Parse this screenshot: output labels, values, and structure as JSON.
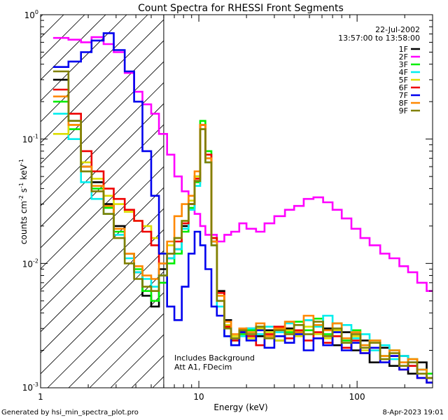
{
  "chart_data": {
    "type": "line",
    "title": "Count Spectra for RHESSI Front Segments",
    "xlabel": "Energy (keV)",
    "ylabel_parts": [
      "counts cm",
      "-2",
      " s",
      "-1",
      " keV",
      "-1"
    ],
    "x_scale": "log",
    "y_scale": "log",
    "xlim": [
      1.0,
      300.0
    ],
    "ylim": [
      0.001,
      1.0
    ],
    "x_ticks": [
      {
        "value": 1,
        "label": "1"
      },
      {
        "value": 10,
        "label": "10"
      },
      {
        "value": 100,
        "label": "100"
      }
    ],
    "y_ticks": [
      {
        "value": 0.001,
        "base": "10",
        "exp": "-3"
      },
      {
        "value": 0.01,
        "base": "10",
        "exp": "-2"
      },
      {
        "value": 0.1,
        "base": "10",
        "exp": "-1"
      },
      {
        "value": 1,
        "base": "10",
        "exp": "0"
      }
    ],
    "hatch_region_keV": [
      1.0,
      6.0
    ],
    "date": "22-Jul-2002",
    "time_range": "13:57:00 to 13:58:00",
    "annotations": [
      "Includes Background",
      "Att A1, FDecim"
    ],
    "series": [
      {
        "name": "1F",
        "color": "#000000",
        "x": [
          1.2,
          1.5,
          1.8,
          2.1,
          2.5,
          2.9,
          3.4,
          3.9,
          4.4,
          5.0,
          5.6,
          6.3,
          7.0,
          7.8,
          8.6,
          9.4,
          10.2,
          11.0,
          12.0,
          13.0,
          14.5,
          16,
          18,
          20,
          23,
          26,
          30,
          35,
          40,
          46,
          53,
          61,
          70,
          80,
          92,
          105,
          120,
          140,
          160,
          185,
          210,
          240,
          275
        ],
        "y": [
          0.3,
          0.14,
          0.06,
          0.045,
          0.03,
          0.02,
          0.012,
          0.0085,
          0.0055,
          0.0045,
          0.009,
          0.011,
          0.013,
          0.02,
          0.03,
          0.05,
          0.13,
          0.07,
          0.015,
          0.006,
          0.0035,
          0.0025,
          0.0028,
          0.003,
          0.0026,
          0.0029,
          0.0024,
          0.003,
          0.0028,
          0.0035,
          0.0025,
          0.003,
          0.0022,
          0.0028,
          0.002,
          0.0024,
          0.0016,
          0.0021,
          0.0015,
          0.0018,
          0.0013,
          0.0016,
          0.0012
        ]
      },
      {
        "name": "2F",
        "color": "#ff00ff",
        "x": [
          1.2,
          1.5,
          1.8,
          2.1,
          2.5,
          2.9,
          3.4,
          3.9,
          4.4,
          5.0,
          5.6,
          6.3,
          7.0,
          7.8,
          8.6,
          9.4,
          10.2,
          11.0,
          12.0,
          13.0,
          14.5,
          16,
          18,
          20,
          23,
          26,
          30,
          35,
          40,
          46,
          53,
          61,
          70,
          80,
          92,
          105,
          120,
          140,
          160,
          185,
          210,
          240,
          275
        ],
        "y": [
          0.65,
          0.63,
          0.6,
          0.66,
          0.58,
          0.5,
          0.34,
          0.24,
          0.19,
          0.16,
          0.11,
          0.075,
          0.05,
          0.038,
          0.03,
          0.025,
          0.02,
          0.017,
          0.017,
          0.015,
          0.017,
          0.018,
          0.021,
          0.019,
          0.018,
          0.021,
          0.024,
          0.027,
          0.029,
          0.033,
          0.034,
          0.031,
          0.027,
          0.023,
          0.019,
          0.016,
          0.014,
          0.012,
          0.011,
          0.0095,
          0.0085,
          0.007,
          0.006
        ]
      },
      {
        "name": "3F",
        "color": "#00ee00",
        "x": [
          1.2,
          1.5,
          1.8,
          2.1,
          2.5,
          2.9,
          3.4,
          3.9,
          4.4,
          5.0,
          5.6,
          6.3,
          7.0,
          7.8,
          8.6,
          9.4,
          10.2,
          11.0,
          12.0,
          13.0,
          14.5,
          16,
          18,
          20,
          23,
          26,
          30,
          35,
          40,
          46,
          53,
          61,
          70,
          80,
          92,
          105,
          120,
          140,
          160,
          185,
          210,
          240,
          275
        ],
        "y": [
          0.2,
          0.12,
          0.055,
          0.04,
          0.028,
          0.018,
          0.012,
          0.009,
          0.006,
          0.005,
          0.007,
          0.01,
          0.012,
          0.018,
          0.028,
          0.045,
          0.14,
          0.08,
          0.016,
          0.005,
          0.003,
          0.0024,
          0.0027,
          0.0029,
          0.0031,
          0.0026,
          0.003,
          0.0028,
          0.0034,
          0.0029,
          0.0036,
          0.0027,
          0.0033,
          0.0024,
          0.0029,
          0.0022,
          0.0024,
          0.0018,
          0.002,
          0.0016,
          0.0017,
          0.0014,
          0.0013
        ]
      },
      {
        "name": "4F",
        "color": "#00eeee",
        "x": [
          1.2,
          1.5,
          1.8,
          2.1,
          2.5,
          2.9,
          3.4,
          3.9,
          4.4,
          5.0,
          5.6,
          6.3,
          7.0,
          7.8,
          8.6,
          9.4,
          10.2,
          11.0,
          12.0,
          13.0,
          14.5,
          16,
          18,
          20,
          23,
          26,
          30,
          35,
          40,
          46,
          53,
          61,
          70,
          80,
          92,
          105,
          120,
          140,
          160,
          185,
          210,
          240,
          275
        ],
        "y": [
          0.16,
          0.1,
          0.045,
          0.033,
          0.025,
          0.017,
          0.011,
          0.0085,
          0.0075,
          0.0065,
          0.008,
          0.011,
          0.013,
          0.019,
          0.027,
          0.042,
          0.12,
          0.065,
          0.014,
          0.0045,
          0.0026,
          0.0022,
          0.0026,
          0.003,
          0.0027,
          0.0031,
          0.0028,
          0.0033,
          0.0029,
          0.0035,
          0.0031,
          0.0038,
          0.0028,
          0.0032,
          0.0025,
          0.0027,
          0.002,
          0.0022,
          0.0017,
          0.0018,
          0.0015,
          0.0014,
          0.0012
        ]
      },
      {
        "name": "5F",
        "color": "#dddd00",
        "x": [
          1.2,
          1.5,
          1.8,
          2.1,
          2.5,
          2.9,
          3.4,
          3.9,
          4.4,
          5.0,
          5.6,
          6.3,
          7.0,
          7.8,
          8.6,
          9.4,
          10.2,
          11.0,
          12.0,
          13.0,
          14.5,
          16,
          18,
          20,
          23,
          26,
          30,
          35,
          40,
          46,
          53,
          61,
          70,
          80,
          92,
          105,
          120,
          140,
          160,
          185,
          210,
          240,
          275
        ],
        "y": [
          0.11,
          0.13,
          0.065,
          0.048,
          0.035,
          0.03,
          0.026,
          0.022,
          0.02,
          0.016,
          0.012,
          0.014,
          0.016,
          0.022,
          0.032,
          0.05,
          0.12,
          0.07,
          0.016,
          0.0055,
          0.0032,
          0.0026,
          0.0029,
          0.0025,
          0.003,
          0.0028,
          0.0024,
          0.0029,
          0.0026,
          0.0031,
          0.0027,
          0.0025,
          0.0029,
          0.0023,
          0.0026,
          0.002,
          0.0023,
          0.0017,
          0.0019,
          0.0015,
          0.0016,
          0.0013,
          0.0012
        ]
      },
      {
        "name": "6F",
        "color": "#ee0000",
        "x": [
          1.2,
          1.5,
          1.8,
          2.1,
          2.5,
          2.9,
          3.4,
          3.9,
          4.4,
          5.0,
          5.6,
          6.3,
          7.0,
          7.8,
          8.6,
          9.4,
          10.2,
          11.0,
          12.0,
          13.0,
          14.5,
          16,
          18,
          20,
          23,
          26,
          30,
          35,
          40,
          46,
          53,
          61,
          70,
          80,
          92,
          105,
          120,
          140,
          160,
          185,
          210,
          240,
          275
        ],
        "y": [
          0.25,
          0.16,
          0.08,
          0.055,
          0.04,
          0.033,
          0.027,
          0.022,
          0.018,
          0.014,
          0.01,
          0.012,
          0.015,
          0.021,
          0.03,
          0.048,
          0.13,
          0.075,
          0.016,
          0.0058,
          0.0031,
          0.0024,
          0.0028,
          0.0026,
          0.0022,
          0.0027,
          0.0031,
          0.0025,
          0.0029,
          0.0024,
          0.0028,
          0.0023,
          0.0026,
          0.0021,
          0.0024,
          0.0019,
          0.0021,
          0.0016,
          0.0018,
          0.0014,
          0.0015,
          0.0012,
          0.0011
        ]
      },
      {
        "name": "7F",
        "color": "#0000ee",
        "x": [
          1.2,
          1.5,
          1.8,
          2.1,
          2.5,
          2.9,
          3.4,
          3.9,
          4.4,
          5.0,
          5.6,
          6.3,
          7.0,
          7.8,
          8.6,
          9.4,
          10.2,
          11.0,
          12.0,
          13.0,
          14.5,
          16,
          18,
          20,
          23,
          26,
          30,
          35,
          40,
          46,
          53,
          61,
          70,
          80,
          92,
          105,
          120,
          140,
          160,
          185,
          210,
          240,
          275
        ],
        "y": [
          0.38,
          0.42,
          0.5,
          0.62,
          0.71,
          0.52,
          0.35,
          0.2,
          0.08,
          0.035,
          0.012,
          0.0045,
          0.0035,
          0.0065,
          0.012,
          0.018,
          0.014,
          0.009,
          0.0045,
          0.0038,
          0.0026,
          0.0022,
          0.0028,
          0.0024,
          0.0029,
          0.0021,
          0.0026,
          0.0023,
          0.0027,
          0.002,
          0.0025,
          0.0022,
          0.0028,
          0.002,
          0.0023,
          0.0019,
          0.0021,
          0.0016,
          0.0018,
          0.0014,
          0.0016,
          0.0012,
          0.0011
        ]
      },
      {
        "name": "8F",
        "color": "#ff8800",
        "x": [
          1.2,
          1.5,
          1.8,
          2.1,
          2.5,
          2.9,
          3.4,
          3.9,
          4.4,
          5.0,
          5.6,
          6.3,
          7.0,
          7.8,
          8.6,
          9.4,
          10.2,
          11.0,
          12.0,
          13.0,
          14.5,
          16,
          18,
          20,
          23,
          26,
          30,
          35,
          40,
          46,
          53,
          61,
          70,
          80,
          92,
          105,
          120,
          140,
          160,
          185,
          210,
          240,
          275
        ],
        "y": [
          0.22,
          0.13,
          0.06,
          0.042,
          0.029,
          0.019,
          0.012,
          0.0095,
          0.008,
          0.0075,
          0.01,
          0.015,
          0.024,
          0.03,
          0.035,
          0.055,
          0.13,
          0.07,
          0.015,
          0.0055,
          0.0034,
          0.0027,
          0.003,
          0.0028,
          0.0033,
          0.0026,
          0.003,
          0.0034,
          0.0028,
          0.0038,
          0.0032,
          0.0029,
          0.0033,
          0.0025,
          0.0028,
          0.0022,
          0.0024,
          0.0018,
          0.002,
          0.0016,
          0.0017,
          0.0014,
          0.0012
        ]
      },
      {
        "name": "9F",
        "color": "#808000",
        "x": [
          1.2,
          1.5,
          1.8,
          2.1,
          2.5,
          2.9,
          3.4,
          3.9,
          4.4,
          5.0,
          5.6,
          6.3,
          7.0,
          7.8,
          8.6,
          9.4,
          10.2,
          11.0,
          12.0,
          13.0,
          14.5,
          16,
          18,
          20,
          23,
          26,
          30,
          35,
          40,
          46,
          53,
          61,
          70,
          80,
          92,
          105,
          120,
          140,
          160,
          185,
          210,
          240,
          275
        ],
        "y": [
          0.35,
          0.14,
          0.055,
          0.038,
          0.025,
          0.016,
          0.01,
          0.0075,
          0.0065,
          0.006,
          0.008,
          0.012,
          0.016,
          0.022,
          0.03,
          0.046,
          0.12,
          0.065,
          0.014,
          0.005,
          0.003,
          0.0025,
          0.0029,
          0.0027,
          0.0031,
          0.0025,
          0.0029,
          0.0027,
          0.0032,
          0.0027,
          0.0034,
          0.0026,
          0.003,
          0.0023,
          0.0027,
          0.0021,
          0.0023,
          0.0017,
          0.0019,
          0.0015,
          0.0016,
          0.0013,
          0.0012
        ]
      }
    ]
  },
  "footer": {
    "generated_by": "Generated by hsi_min_spectra_plot.pro",
    "timestamp": "8-Apr-2023 19:01"
  }
}
